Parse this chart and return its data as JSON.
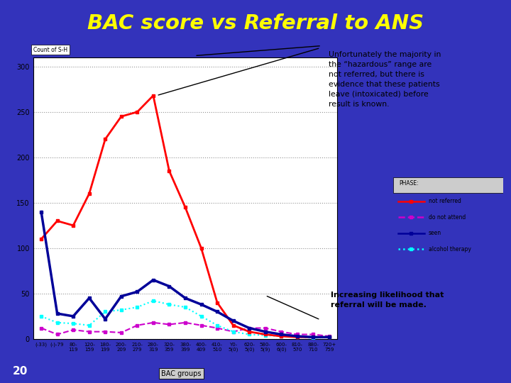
{
  "title": "BAC score vs Referral to ANS",
  "title_color": "#FFFF00",
  "bg_color": "#3333BB",
  "plot_bg": "#FFFFFF",
  "x_labels": [
    "(-33)",
    "(-)-79",
    "80-\n119",
    "120-\n159",
    "180-\n199",
    "200-\n209",
    "210-\n279",
    "280-\n319",
    "320-\n359",
    "380-\n399",
    "400-\n409",
    "410-\n510",
    "Y0-\n5(0)",
    "620-\n5(0)",
    "580-\n5(9)",
    "600-\n6(0)",
    "810-\n570",
    "880-\n710",
    "720+\n759"
  ],
  "not_referred": [
    110,
    130,
    125,
    160,
    220,
    245,
    250,
    268,
    185,
    145,
    100,
    40,
    15,
    8,
    5,
    3,
    2,
    2,
    2
  ],
  "do_not_attend": [
    12,
    5,
    10,
    8,
    8,
    7,
    15,
    18,
    16,
    18,
    15,
    12,
    8,
    12,
    12,
    8,
    5,
    5,
    3
  ],
  "seen": [
    140,
    28,
    25,
    45,
    22,
    47,
    52,
    65,
    58,
    45,
    38,
    30,
    20,
    12,
    8,
    5,
    3,
    2,
    2
  ],
  "alcohol_therapy": [
    25,
    18,
    17,
    15,
    30,
    32,
    35,
    42,
    38,
    35,
    25,
    15,
    8,
    5,
    4,
    3,
    2,
    1,
    2
  ],
  "ylabel": "Count of S-H",
  "xlabel": "BAC groups",
  "ylim": [
    0,
    310
  ],
  "yticks": [
    0,
    50,
    100,
    150,
    200,
    250,
    300
  ],
  "ytick_labels": [
    "0",
    "50",
    "100",
    "150",
    "200",
    "250",
    "300"
  ],
  "annotation_box_text": "Unfortunately the majority in\nthe “hazardous” range are\nnot referred, but there is\nevidence that these patients\nleave (intoxicated) before\nresult is known.",
  "annotation_box2_text": "Increasing likelihood that\nreferral will be made.",
  "footer_number": "20"
}
